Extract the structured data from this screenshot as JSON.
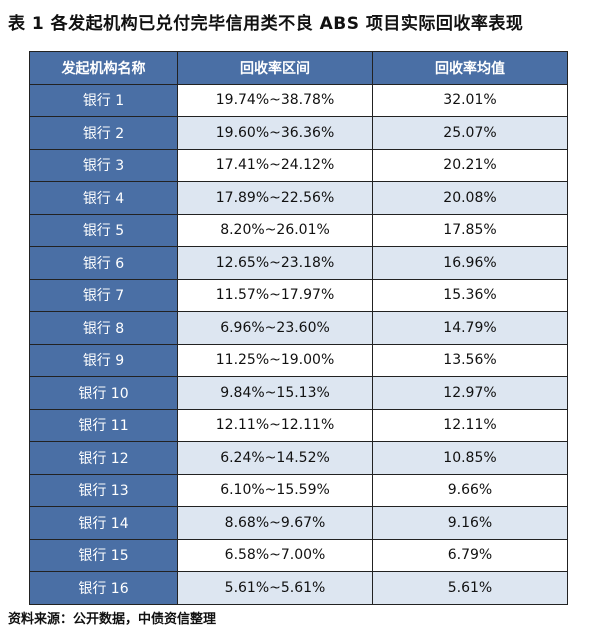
{
  "title": "表 1  各发起机构已兑付完毕信用类不良 ABS 项目实际回收率表现",
  "table": {
    "headers": [
      "发起机构名称",
      "回收率区间",
      "回收率均值"
    ],
    "rows": [
      {
        "name": "银行 1",
        "range": "19.74%~38.78%",
        "mean": "32.01%"
      },
      {
        "name": "银行 2",
        "range": "19.60%~36.36%",
        "mean": "25.07%"
      },
      {
        "name": "银行 3",
        "range": "17.41%~24.12%",
        "mean": "20.21%"
      },
      {
        "name": "银行 4",
        "range": "17.89%~22.56%",
        "mean": "20.08%"
      },
      {
        "name": "银行 5",
        "range": "8.20%~26.01%",
        "mean": "17.85%"
      },
      {
        "name": "银行 6",
        "range": "12.65%~23.18%",
        "mean": "16.96%"
      },
      {
        "name": "银行 7",
        "range": "11.57%~17.97%",
        "mean": "15.36%"
      },
      {
        "name": "银行 8",
        "range": "6.96%~23.60%",
        "mean": "14.79%"
      },
      {
        "name": "银行 9",
        "range": "11.25%~19.00%",
        "mean": "13.56%"
      },
      {
        "name": "银行 10",
        "range": "9.84%~15.13%",
        "mean": "12.97%"
      },
      {
        "name": "银行 11",
        "range": "12.11%~12.11%",
        "mean": "12.11%"
      },
      {
        "name": "银行 12",
        "range": "6.24%~14.52%",
        "mean": "10.85%"
      },
      {
        "name": "银行 13",
        "range": "6.10%~15.59%",
        "mean": "9.66%"
      },
      {
        "name": "银行 14",
        "range": "8.68%~9.67%",
        "mean": "9.16%"
      },
      {
        "name": "银行 15",
        "range": "6.58%~7.00%",
        "mean": "6.79%"
      },
      {
        "name": "银行 16",
        "range": "5.61%~5.61%",
        "mean": "5.61%"
      }
    ]
  },
  "source": "资料来源：公开数据，中债资信整理",
  "colors": {
    "header_bg": "#4a6fa5",
    "stripe_bg": "#dde6f1",
    "white": "#ffffff"
  }
}
